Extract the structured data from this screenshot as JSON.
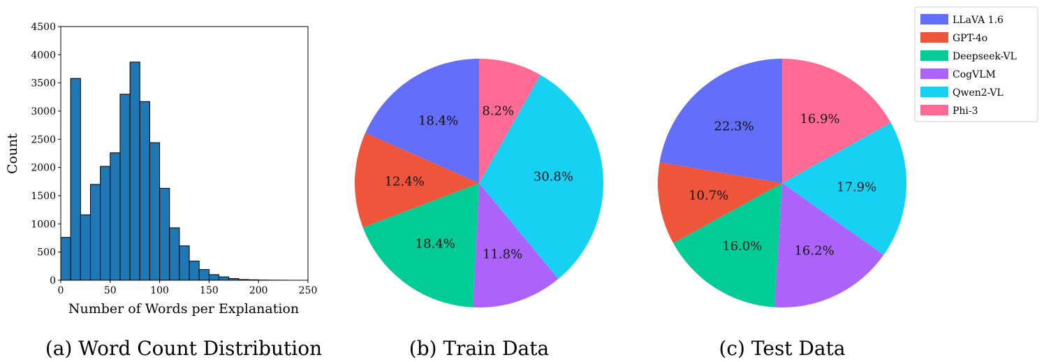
{
  "chart_data": [
    {
      "type": "bar",
      "caption": "(a) Word Count Distribution",
      "xlabel": "Number of Words per Explanation",
      "ylabel": "Count",
      "xlim": [
        0,
        250
      ],
      "ylim": [
        0,
        4500
      ],
      "xticks": [
        0,
        50,
        100,
        150,
        200,
        250
      ],
      "yticks": [
        0,
        500,
        1000,
        1500,
        2000,
        2500,
        3000,
        3500,
        4000,
        4500
      ],
      "bin_width": 10,
      "bins": [
        {
          "x0": 0,
          "x1": 10,
          "count": 760
        },
        {
          "x0": 10,
          "x1": 20,
          "count": 3580
        },
        {
          "x0": 20,
          "x1": 30,
          "count": 1160
        },
        {
          "x0": 30,
          "x1": 40,
          "count": 1700
        },
        {
          "x0": 40,
          "x1": 50,
          "count": 2020
        },
        {
          "x0": 50,
          "x1": 60,
          "count": 2260
        },
        {
          "x0": 60,
          "x1": 70,
          "count": 3300
        },
        {
          "x0": 70,
          "x1": 80,
          "count": 3870
        },
        {
          "x0": 80,
          "x1": 90,
          "count": 3170
        },
        {
          "x0": 90,
          "x1": 100,
          "count": 2440
        },
        {
          "x0": 100,
          "x1": 110,
          "count": 1630
        },
        {
          "x0": 110,
          "x1": 120,
          "count": 930
        },
        {
          "x0": 120,
          "x1": 130,
          "count": 610
        },
        {
          "x0": 130,
          "x1": 140,
          "count": 340
        },
        {
          "x0": 140,
          "x1": 150,
          "count": 190
        },
        {
          "x0": 150,
          "x1": 160,
          "count": 100
        },
        {
          "x0": 160,
          "x1": 170,
          "count": 60
        },
        {
          "x0": 170,
          "x1": 180,
          "count": 30
        },
        {
          "x0": 180,
          "x1": 190,
          "count": 12
        },
        {
          "x0": 190,
          "x1": 200,
          "count": 8
        },
        {
          "x0": 200,
          "x1": 210,
          "count": 4
        },
        {
          "x0": 210,
          "x1": 220,
          "count": 2
        },
        {
          "x0": 220,
          "x1": 230,
          "count": 1
        }
      ],
      "bar_color": "#1f77b4",
      "edge_color": "#000000",
      "grid": false
    },
    {
      "type": "pie",
      "caption": "(b) Train Data",
      "start_angle": 90,
      "direction": "clockwise",
      "slices": [
        {
          "label": "Phi-3",
          "pct_label": "8.2%",
          "value": 8.2,
          "color": "#ff6b94"
        },
        {
          "label": "Qwen2-VL",
          "pct_label": "30.8%",
          "value": 30.8,
          "color": "#16d1f2"
        },
        {
          "label": "CogVLM",
          "pct_label": "11.8%",
          "value": 11.8,
          "color": "#ab63fa"
        },
        {
          "label": "Deepseek-VL",
          "pct_label": "18.4%",
          "value": 18.4,
          "color": "#02cc96"
        },
        {
          "label": "GPT-4o",
          "pct_label": "12.4%",
          "value": 12.4,
          "color": "#ef553b"
        },
        {
          "label": "LLaVA 1.6",
          "pct_label": "18.4%",
          "value": 18.4,
          "color": "#636efa"
        }
      ]
    },
    {
      "type": "pie",
      "caption": "(c) Test Data",
      "start_angle": 90,
      "direction": "clockwise",
      "slices": [
        {
          "label": "Phi-3",
          "pct_label": "16.9%",
          "value": 16.9,
          "color": "#ff6b94"
        },
        {
          "label": "Qwen2-VL",
          "pct_label": "17.9%",
          "value": 17.9,
          "color": "#16d1f2"
        },
        {
          "label": "CogVLM",
          "pct_label": "16.2%",
          "value": 16.2,
          "color": "#ab63fa"
        },
        {
          "label": "Deepseek-VL",
          "pct_label": "16.0%",
          "value": 16.0,
          "color": "#02cc96"
        },
        {
          "label": "GPT-4o",
          "pct_label": "10.7%",
          "value": 10.7,
          "color": "#ef553b"
        },
        {
          "label": "LLaVA 1.6",
          "pct_label": "22.3%",
          "value": 22.3,
          "color": "#636efa"
        }
      ]
    }
  ],
  "legend": {
    "placement": "top-right",
    "entries": [
      {
        "label": "LLaVA 1.6",
        "color": "#636efa"
      },
      {
        "label": "GPT-4o",
        "color": "#ef553b"
      },
      {
        "label": "Deepseek-VL",
        "color": "#02cc96"
      },
      {
        "label": "CogVLM",
        "color": "#ab63fa"
      },
      {
        "label": "Qwen2-VL",
        "color": "#16d1f2"
      },
      {
        "label": "Phi-3",
        "color": "#ff6b94"
      }
    ]
  }
}
